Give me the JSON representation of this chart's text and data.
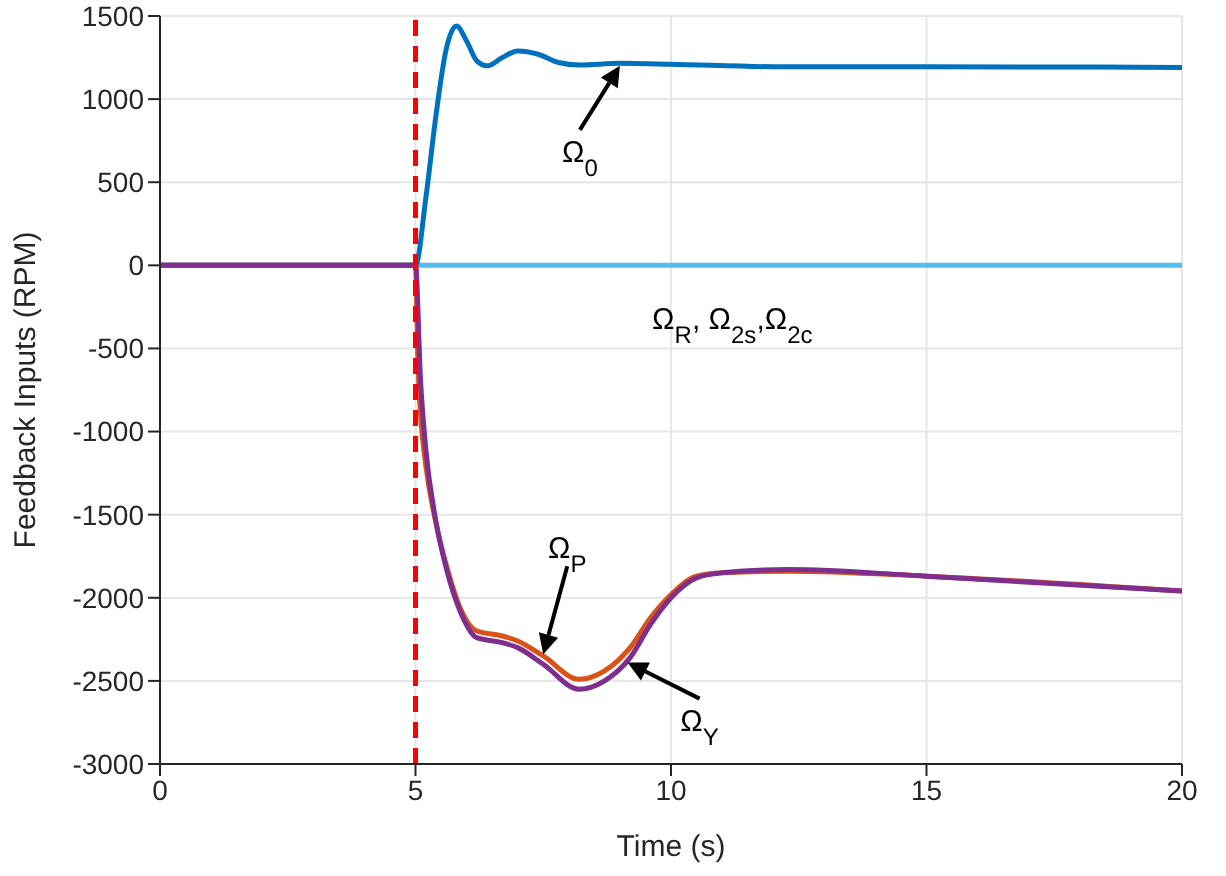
{
  "chart_data": {
    "type": "line",
    "xlabel": "Time (s)",
    "ylabel": "Feedback Inputs (RPM)",
    "xlim": [
      0,
      20
    ],
    "xticks": [
      0,
      5,
      10,
      15,
      20
    ],
    "ylim": [
      -3000,
      1500
    ],
    "yticks": [
      -3000,
      -2500,
      -2000,
      -1500,
      -1000,
      -500,
      0,
      500,
      1000,
      1500
    ],
    "grid": true,
    "legend": false,
    "line_style": "solid",
    "marker": "none",
    "series": [
      {
        "color": "#4dbeee",
        "x": [
          0,
          20
        ],
        "values": [
          0,
          0
        ]
      },
      {
        "color": "#0072bd",
        "x": [
          0,
          5,
          5.2,
          5.4,
          5.6,
          5.8,
          6.0,
          6.2,
          6.4,
          6.7,
          7.0,
          7.4,
          7.8,
          8.2,
          9,
          10,
          12,
          15,
          20
        ],
        "values": [
          0,
          0,
          400,
          900,
          1300,
          1440,
          1350,
          1230,
          1200,
          1250,
          1290,
          1270,
          1220,
          1205,
          1215,
          1210,
          1195,
          1195,
          1190
        ]
      },
      {
        "color": "#d95319",
        "x": [
          0,
          5,
          5.05,
          5.1,
          5.2,
          5.4,
          5.6,
          5.9,
          6.2,
          6.7,
          7.0,
          7.5,
          8.2,
          8.7,
          9.2,
          9.6,
          10,
          10.5,
          11,
          12.3,
          15,
          20
        ],
        "values": [
          0,
          0,
          -600,
          -900,
          -1200,
          -1550,
          -1800,
          -2080,
          -2200,
          -2230,
          -2260,
          -2350,
          -2490,
          -2440,
          -2300,
          -2120,
          -1980,
          -1870,
          -1850,
          -1840,
          -1870,
          -1960
        ]
      },
      {
        "color": "#7e2f8e",
        "x": [
          0,
          5,
          5.1,
          5.2,
          5.4,
          5.6,
          5.9,
          6.2,
          6.7,
          7.0,
          7.5,
          8.2,
          8.7,
          9.2,
          9.6,
          10,
          10.5,
          11,
          12.3,
          15,
          20
        ],
        "values": [
          0,
          0,
          -700,
          -1100,
          -1540,
          -1820,
          -2100,
          -2240,
          -2270,
          -2300,
          -2400,
          -2550,
          -2500,
          -2360,
          -2160,
          -2000,
          -1880,
          -1850,
          -1830,
          -1870,
          -1960
        ]
      }
    ],
    "ref_lines": [
      {
        "axis": "x",
        "value": 5,
        "color": "#ff0000",
        "line_style": "dashed"
      }
    ],
    "annotations": [
      {
        "text": "Ω$_{0}$",
        "x": 9,
        "y": 1200
      },
      {
        "text": "Ω$_{R}$, Ω$_{2s}$,Ω$_{2c}$",
        "x": 11.2,
        "y": 0
      },
      {
        "text": "Ω$_{P}$",
        "x": 7.5,
        "y": -2340
      },
      {
        "text": "Ω$_{Y}$",
        "x": 9.15,
        "y": -2390
      }
    ]
  }
}
